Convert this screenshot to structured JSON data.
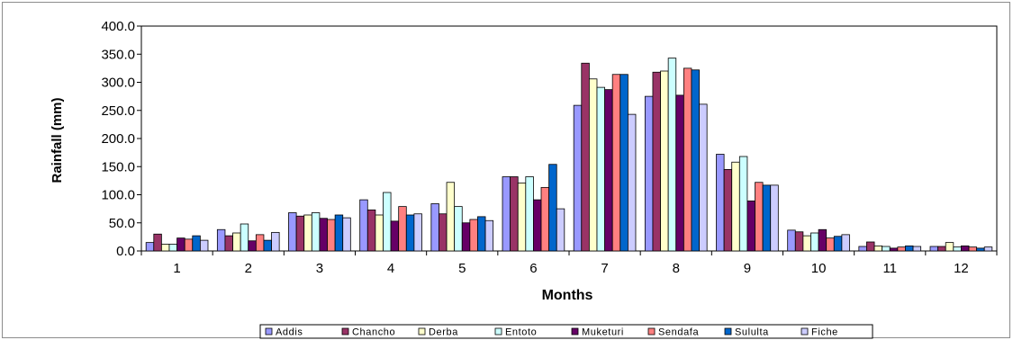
{
  "chart_data": {
    "type": "bar",
    "title": "",
    "xlabel": "Months",
    "ylabel": "Rainfall (mm)",
    "ylim": [
      0,
      400
    ],
    "y_ticks": [
      "0.0",
      "50.0",
      "100.0",
      "150.0",
      "200.0",
      "250.0",
      "300.0",
      "350.0",
      "400.0"
    ],
    "grid": false,
    "legend_position": "bottom",
    "categories": [
      "1",
      "2",
      "3",
      "4",
      "5",
      "6",
      "7",
      "8",
      "9",
      "10",
      "11",
      "12"
    ],
    "series": [
      {
        "name": "Addis",
        "color": "#9999ff",
        "values": [
          15,
          38,
          68,
          91,
          84,
          132,
          259,
          275,
          172,
          37,
          8,
          8
        ]
      },
      {
        "name": "Chancho",
        "color": "#993366",
        "values": [
          30,
          27,
          62,
          73,
          66,
          132,
          334,
          318,
          145,
          34,
          16,
          8
        ]
      },
      {
        "name": "Derba",
        "color": "#ffffcc",
        "values": [
          12,
          32,
          64,
          64,
          122,
          121,
          306,
          320,
          158,
          27,
          9,
          15
        ]
      },
      {
        "name": "Entoto",
        "color": "#ccffff",
        "values": [
          12,
          48,
          68,
          104,
          79,
          132,
          291,
          343,
          168,
          32,
          8,
          7
        ]
      },
      {
        "name": "Muketuri",
        "color": "#660066",
        "values": [
          23,
          18,
          58,
          53,
          50,
          91,
          287,
          277,
          89,
          38,
          5,
          9
        ]
      },
      {
        "name": "Sendafa",
        "color": "#ff8080",
        "values": [
          21,
          29,
          56,
          79,
          56,
          113,
          314,
          325,
          122,
          23,
          7,
          7
        ]
      },
      {
        "name": "Sululta",
        "color": "#0066cc",
        "values": [
          27,
          19,
          64,
          64,
          61,
          154,
          314,
          322,
          117,
          26,
          9,
          5
        ]
      },
      {
        "name": "Fiche",
        "color": "#ccccff",
        "values": [
          19,
          33,
          59,
          66,
          54,
          75,
          243,
          261,
          117,
          29,
          8,
          7
        ]
      }
    ]
  }
}
